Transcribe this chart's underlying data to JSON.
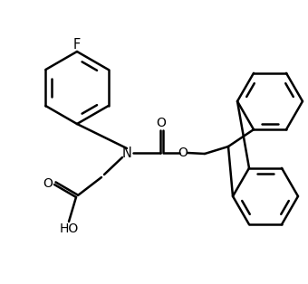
{
  "bg": "#ffffff",
  "lc": "#000000",
  "lw": 1.8,
  "fw": 3.36,
  "fh": 3.1,
  "dpi": 100,
  "note": "N-Fmoc-4-fluorobenzyl-glycine structure. All coords in data-space 0-336 x 0-310 (y up)."
}
